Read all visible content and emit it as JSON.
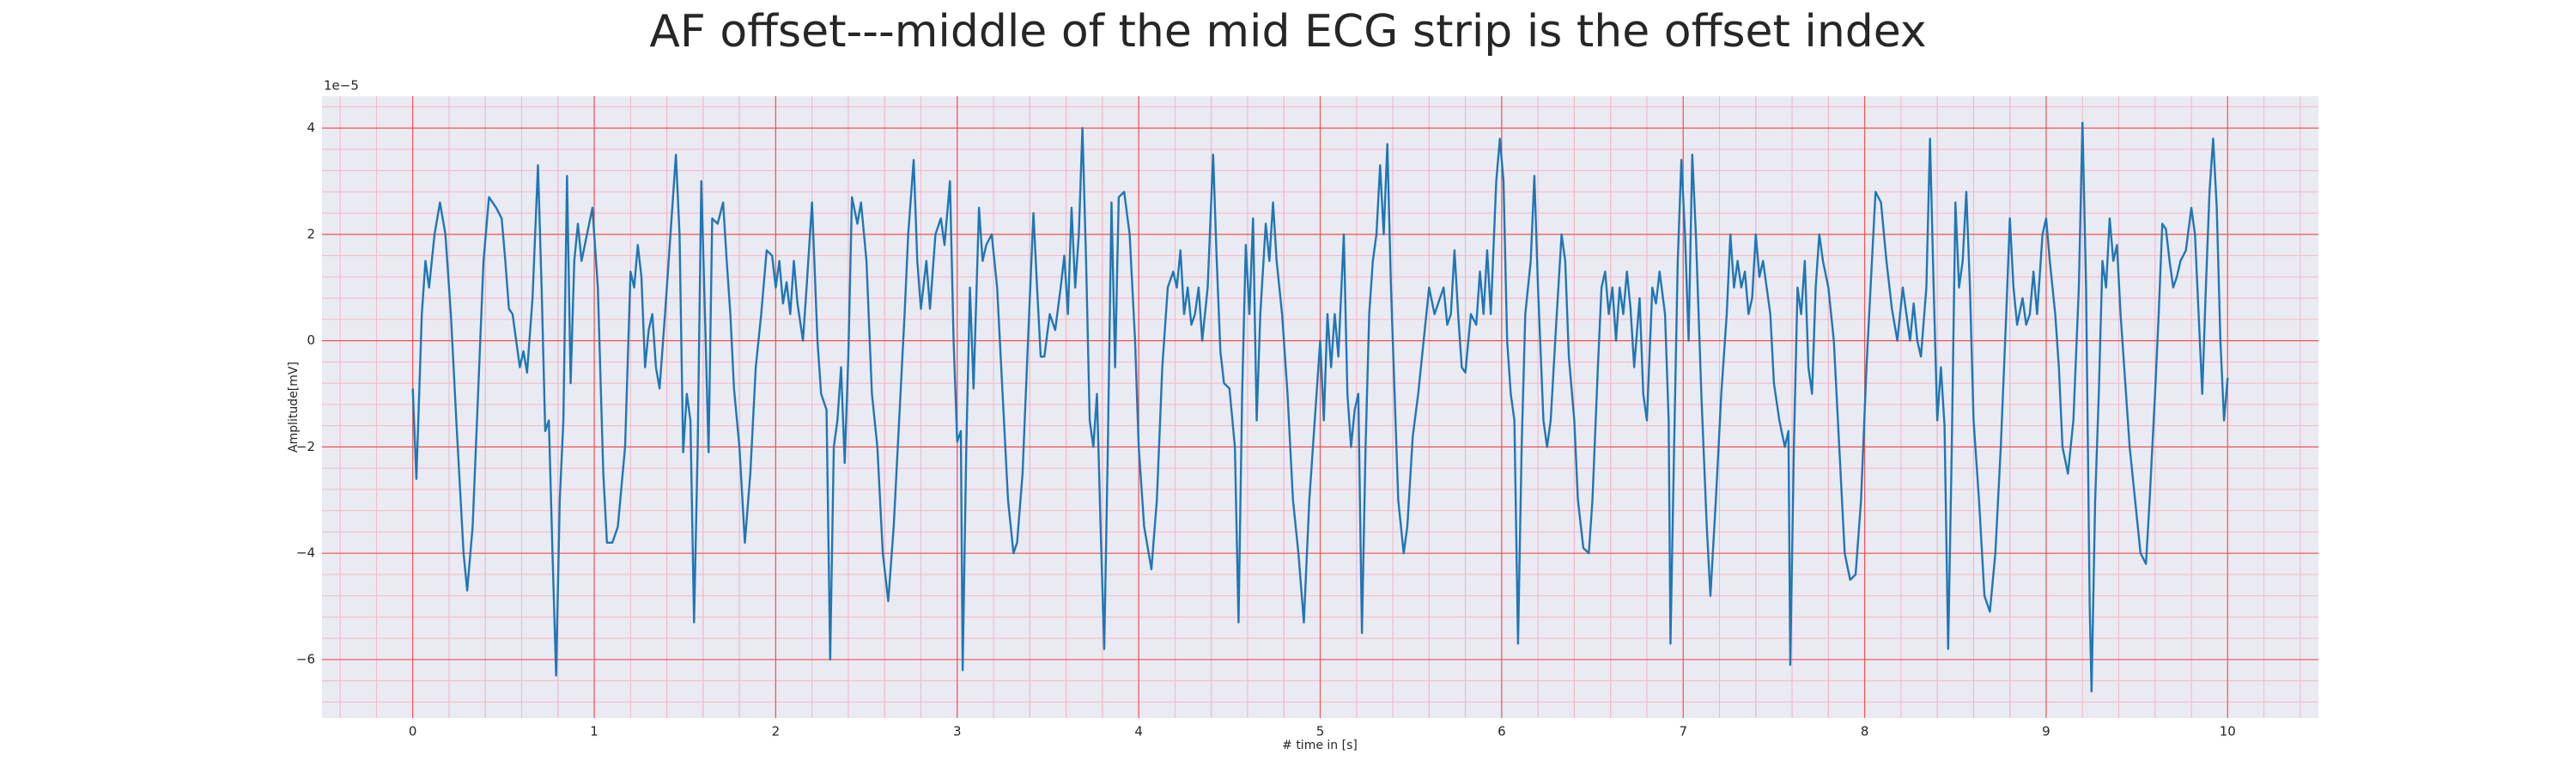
{
  "chart_data": {
    "type": "line",
    "title": "AF offset---middle of the mid ECG strip is the offset index",
    "xlabel": "# time in [s]",
    "ylabel": "Amplitude[mV]",
    "y_offset_label": "1e−5",
    "color": "#1f77b4",
    "grid": true,
    "minor_grid": true,
    "xlim": [
      -0.5,
      10.5
    ],
    "ylim": [
      -7.1,
      4.6
    ],
    "xticks": [
      0,
      1,
      2,
      3,
      4,
      5,
      6,
      7,
      8,
      9,
      10
    ],
    "yticks": [
      {
        "value": -6,
        "label": "−6"
      },
      {
        "value": -4,
        "label": "−4"
      },
      {
        "value": -2,
        "label": "−2"
      },
      0,
      2,
      4
    ],
    "x": [
      0.0,
      0.02,
      0.05,
      0.07,
      0.09,
      0.12,
      0.15,
      0.18,
      0.21,
      0.24,
      0.28,
      0.3,
      0.33,
      0.36,
      0.39,
      0.42,
      0.46,
      0.49,
      0.51,
      0.53,
      0.55,
      0.57,
      0.59,
      0.61,
      0.63,
      0.66,
      0.69,
      0.71,
      0.73,
      0.75,
      0.77,
      0.79,
      0.81,
      0.83,
      0.85,
      0.87,
      0.89,
      0.91,
      0.93,
      0.96,
      0.99,
      1.02,
      1.05,
      1.07,
      1.1,
      1.13,
      1.17,
      1.2,
      1.22,
      1.24,
      1.26,
      1.28,
      1.3,
      1.32,
      1.34,
      1.36,
      1.39,
      1.42,
      1.45,
      1.47,
      1.49,
      1.51,
      1.53,
      1.55,
      1.57,
      1.59,
      1.61,
      1.63,
      1.65,
      1.68,
      1.71,
      1.73,
      1.75,
      1.77,
      1.8,
      1.83,
      1.86,
      1.89,
      1.92,
      1.95,
      1.98,
      2.0,
      2.02,
      2.04,
      2.06,
      2.08,
      2.1,
      2.12,
      2.15,
      2.17,
      2.2,
      2.23,
      2.25,
      2.28,
      2.3,
      2.32,
      2.34,
      2.36,
      2.38,
      2.4,
      2.42,
      2.45,
      2.47,
      2.5,
      2.53,
      2.56,
      2.59,
      2.62,
      2.65,
      2.68,
      2.71,
      2.73,
      2.76,
      2.78,
      2.8,
      2.83,
      2.85,
      2.88,
      2.91,
      2.93,
      2.96,
      2.98,
      3.0,
      3.02,
      3.03,
      3.05,
      3.07,
      3.09,
      3.12,
      3.14,
      3.16,
      3.19,
      3.22,
      3.25,
      3.28,
      3.31,
      3.33,
      3.36,
      3.39,
      3.42,
      3.44,
      3.46,
      3.48,
      3.51,
      3.54,
      3.57,
      3.59,
      3.61,
      3.63,
      3.65,
      3.67,
      3.69,
      3.71,
      3.73,
      3.75,
      3.77,
      3.79,
      3.81,
      3.83,
      3.85,
      3.87,
      3.89,
      3.92,
      3.95,
      3.98,
      4.0,
      4.03,
      4.07,
      4.1,
      4.13,
      4.16,
      4.19,
      4.21,
      4.23,
      4.25,
      4.27,
      4.29,
      4.31,
      4.33,
      4.35,
      4.38,
      4.41,
      4.43,
      4.45,
      4.47,
      4.5,
      4.53,
      4.55,
      4.57,
      4.59,
      4.61,
      4.63,
      4.65,
      4.67,
      4.7,
      4.72,
      4.74,
      4.76,
      4.79,
      4.82,
      4.85,
      4.88,
      4.91,
      4.94,
      4.97,
      5.0,
      5.02,
      5.04,
      5.06,
      5.08,
      5.1,
      5.13,
      5.15,
      5.17,
      5.19,
      5.21,
      5.23,
      5.25,
      5.27,
      5.29,
      5.31,
      5.33,
      5.35,
      5.37,
      5.39,
      5.41,
      5.43,
      5.46,
      5.48,
      5.51,
      5.54,
      5.57,
      5.6,
      5.63,
      5.66,
      5.68,
      5.7,
      5.72,
      5.74,
      5.76,
      5.78,
      5.8,
      5.83,
      5.86,
      5.88,
      5.9,
      5.92,
      5.94,
      5.97,
      5.99,
      6.01,
      6.03,
      6.05,
      6.07,
      6.09,
      6.11,
      6.13,
      6.16,
      6.18,
      6.2,
      6.23,
      6.25,
      6.27,
      6.3,
      6.33,
      6.35,
      6.37,
      6.4,
      6.42,
      6.45,
      6.48,
      6.5,
      6.53,
      6.55,
      6.57,
      6.59,
      6.61,
      6.63,
      6.65,
      6.67,
      6.69,
      6.71,
      6.73,
      6.76,
      6.78,
      6.8,
      6.83,
      6.85,
      6.87,
      6.9,
      6.92,
      6.93,
      6.95,
      6.97,
      6.99,
      7.01,
      7.03,
      7.05,
      7.07,
      7.1,
      7.13,
      7.15,
      7.18,
      7.21,
      7.24,
      7.26,
      7.28,
      7.3,
      7.32,
      7.34,
      7.36,
      7.38,
      7.4,
      7.42,
      7.44,
      7.46,
      7.48,
      7.5,
      7.53,
      7.56,
      7.58,
      7.59,
      7.61,
      7.63,
      7.65,
      7.67,
      7.69,
      7.71,
      7.73,
      7.75,
      7.77,
      7.8,
      7.83,
      7.86,
      7.89,
      7.92,
      7.95,
      7.98,
      8.01,
      8.04,
      8.06,
      8.09,
      8.12,
      8.15,
      8.18,
      8.21,
      8.23,
      8.25,
      8.27,
      8.29,
      8.31,
      8.34,
      8.36,
      8.38,
      8.4,
      8.42,
      8.44,
      8.46,
      8.48,
      8.5,
      8.52,
      8.54,
      8.56,
      8.58,
      8.6,
      8.63,
      8.66,
      8.69,
      8.72,
      8.75,
      8.78,
      8.8,
      8.82,
      8.84,
      8.87,
      8.89,
      8.91,
      8.93,
      8.95,
      8.98,
      9.0,
      9.02,
      9.05,
      9.07,
      9.09,
      9.12,
      9.15,
      9.18,
      9.2,
      9.22,
      9.24,
      9.25,
      9.27,
      9.29,
      9.31,
      9.33,
      9.35,
      9.37,
      9.39,
      9.41,
      9.43,
      9.46,
      9.49,
      9.52,
      9.55,
      9.57,
      9.6,
      9.62,
      9.64,
      9.66,
      9.68,
      9.7,
      9.72,
      9.74,
      9.77,
      9.8,
      9.82,
      9.84,
      9.86,
      9.88,
      9.9,
      9.92,
      9.94,
      9.96,
      9.98,
      10.0
    ],
    "values": [
      -0.9,
      -2.6,
      0.5,
      1.5,
      1.0,
      2.0,
      2.6,
      2.0,
      0.5,
      -1.5,
      -4.0,
      -4.7,
      -3.5,
      -1.0,
      1.5,
      2.7,
      2.5,
      2.3,
      1.5,
      0.6,
      0.5,
      0.0,
      -0.5,
      -0.2,
      -0.6,
      0.8,
      3.3,
      1.0,
      -1.7,
      -1.5,
      -4.0,
      -6.3,
      -3.0,
      -1.5,
      3.1,
      -0.8,
      1.5,
      2.2,
      1.5,
      2.0,
      2.5,
      1.0,
      -2.5,
      -3.8,
      -3.8,
      -3.5,
      -2.0,
      1.3,
      1.0,
      1.8,
      1.2,
      -0.5,
      0.2,
      0.5,
      -0.5,
      -0.9,
      0.5,
      2.0,
      3.5,
      2.0,
      -2.1,
      -1.0,
      -1.5,
      -5.3,
      -2.0,
      3.0,
      0.5,
      -2.1,
      2.3,
      2.2,
      2.6,
      1.5,
      0.5,
      -0.9,
      -2.0,
      -3.8,
      -2.5,
      -0.5,
      0.5,
      1.7,
      1.6,
      1.0,
      1.5,
      0.7,
      1.1,
      0.5,
      1.5,
      0.7,
      0.0,
      1.0,
      2.6,
      0.0,
      -1.0,
      -1.3,
      -6.0,
      -2.0,
      -1.5,
      -0.5,
      -2.3,
      -0.3,
      2.7,
      2.2,
      2.6,
      1.5,
      -1.0,
      -2.0,
      -4.0,
      -4.9,
      -3.5,
      -1.5,
      0.5,
      2.0,
      3.4,
      1.5,
      0.6,
      1.5,
      0.6,
      2.0,
      2.3,
      1.8,
      3.0,
      0.0,
      -1.9,
      -1.7,
      -6.2,
      -2.0,
      1.0,
      -0.9,
      2.5,
      1.5,
      1.8,
      2.0,
      1.0,
      -1.0,
      -3.0,
      -4.0,
      -3.8,
      -2.5,
      0.0,
      2.4,
      1.0,
      -0.3,
      -0.3,
      0.5,
      0.2,
      1.0,
      1.6,
      0.5,
      2.5,
      1.0,
      2.0,
      4.0,
      1.5,
      -1.5,
      -2.0,
      -1.0,
      -3.5,
      -5.8,
      -2.0,
      2.6,
      -0.5,
      2.7,
      2.8,
      2.0,
      0.0,
      -2.0,
      -3.5,
      -4.3,
      -3.0,
      -0.5,
      1.0,
      1.3,
      1.0,
      1.7,
      0.5,
      1.0,
      0.3,
      0.5,
      1.0,
      0.0,
      1.0,
      3.5,
      1.5,
      -0.2,
      -0.8,
      -0.9,
      -2.0,
      -5.3,
      -1.0,
      1.8,
      0.5,
      2.3,
      -1.5,
      0.5,
      2.2,
      1.5,
      2.6,
      1.5,
      0.5,
      -1.0,
      -3.0,
      -4.0,
      -5.3,
      -3.0,
      -1.5,
      0.0,
      -1.5,
      0.5,
      -0.5,
      0.5,
      -0.3,
      2.0,
      -1.0,
      -2.0,
      -1.3,
      -1.0,
      -5.5,
      -2.0,
      0.5,
      1.5,
      2.0,
      3.3,
      2.0,
      3.7,
      1.0,
      -1.0,
      -3.0,
      -4.0,
      -3.5,
      -1.8,
      -1.0,
      0.0,
      1.0,
      0.5,
      0.8,
      1.0,
      0.3,
      0.5,
      1.7,
      0.5,
      -0.5,
      -0.6,
      0.5,
      0.3,
      1.3,
      0.5,
      1.7,
      0.5,
      3.0,
      3.8,
      3.0,
      0.0,
      -1.0,
      -1.5,
      -5.7,
      -2.0,
      0.5,
      1.5,
      3.1,
      1.0,
      -1.5,
      -2.0,
      -1.5,
      0.3,
      2.0,
      1.5,
      -0.3,
      -1.5,
      -3.0,
      -3.9,
      -4.0,
      -3.0,
      -0.5,
      1.0,
      1.3,
      0.5,
      1.0,
      0.0,
      1.0,
      0.5,
      1.3,
      0.6,
      -0.5,
      0.8,
      -1.0,
      -1.5,
      1.0,
      0.7,
      1.3,
      0.5,
      -1.5,
      -5.7,
      -2.0,
      1.5,
      3.4,
      2.0,
      0.0,
      3.5,
      2.0,
      -1.0,
      -3.5,
      -4.8,
      -3.0,
      -1.0,
      0.5,
      2.0,
      1.0,
      1.5,
      1.0,
      1.3,
      0.5,
      0.8,
      2.0,
      1.2,
      1.5,
      1.0,
      0.5,
      -0.8,
      -1.5,
      -2.0,
      -1.7,
      -6.1,
      -2.0,
      1.0,
      0.5,
      1.5,
      -0.5,
      -1.0,
      1.0,
      2.0,
      1.5,
      1.0,
      0.0,
      -2.0,
      -4.0,
      -4.5,
      -4.4,
      -3.0,
      -0.5,
      1.5,
      2.8,
      2.6,
      1.5,
      0.6,
      0.0,
      1.0,
      0.5,
      0.0,
      0.7,
      0.0,
      -0.3,
      1.0,
      3.8,
      1.0,
      -1.5,
      -0.5,
      -1.6,
      -5.8,
      -2.0,
      2.6,
      1.0,
      1.5,
      2.8,
      1.0,
      -1.5,
      -3.0,
      -4.8,
      -5.1,
      -4.0,
      -2.0,
      0.5,
      2.3,
      1.0,
      0.3,
      0.8,
      0.3,
      0.5,
      1.3,
      0.5,
      2.0,
      2.3,
      1.5,
      0.5,
      -0.5,
      -2.0,
      -2.5,
      -1.5,
      1.0,
      4.1,
      1.0,
      -5.0,
      -6.6,
      -3.0,
      -1.0,
      1.5,
      1.0,
      2.3,
      1.5,
      1.8,
      0.5,
      -0.5,
      -2.0,
      -3.0,
      -4.0,
      -4.2,
      -3.0,
      -1.0,
      0.5,
      2.2,
      2.1,
      1.5,
      1.0,
      1.2,
      1.5,
      1.7,
      2.5,
      2.0,
      0.5,
      -1.0,
      1.0,
      2.8,
      3.8,
      2.5,
      0.0,
      -1.5,
      -0.7
    ]
  }
}
